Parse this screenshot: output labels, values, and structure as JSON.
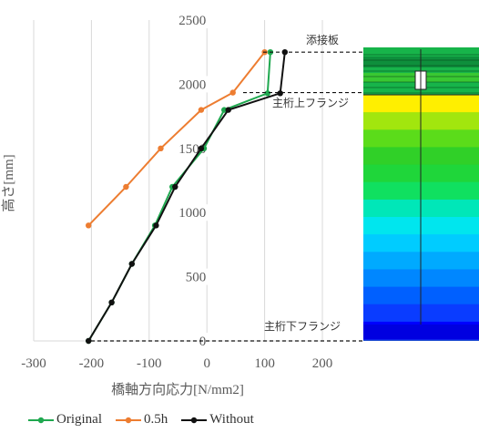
{
  "chart_data": {
    "type": "line",
    "xlabel": "橋軸方向応力[N/mm2]",
    "ylabel": "高さ[mm]",
    "xlim": [
      -300,
      200
    ],
    "ylim": [
      0,
      2500
    ],
    "xticks": [
      "-300",
      "-200",
      "-100",
      "0",
      "100",
      "200"
    ],
    "yticks": [
      "0",
      "500",
      "1000",
      "1500",
      "2000",
      "2500"
    ],
    "grid": "vertical-major",
    "legend_position": "bottom-left",
    "series": [
      {
        "name": "Original",
        "color": "#1fa84f",
        "points": [
          [
            -205,
            0
          ],
          [
            -165,
            300
          ],
          [
            -130,
            600
          ],
          [
            -90,
            900
          ],
          [
            -60,
            1200
          ],
          [
            -5,
            1500
          ],
          [
            30,
            1800
          ],
          [
            105,
            1930
          ],
          [
            110,
            2250
          ]
        ]
      },
      {
        "name": "0.5h",
        "color": "#ed7d31",
        "points": [
          [
            -205,
            900
          ],
          [
            -140,
            1200
          ],
          [
            -80,
            1500
          ],
          [
            -10,
            1800
          ],
          [
            45,
            1935
          ],
          [
            100,
            2250
          ]
        ]
      },
      {
        "name": "Without",
        "color": "#111111",
        "points": [
          [
            -205,
            0
          ],
          [
            -165,
            300
          ],
          [
            -130,
            600
          ],
          [
            -88,
            900
          ],
          [
            -55,
            1200
          ],
          [
            -10,
            1500
          ],
          [
            37,
            1800
          ],
          [
            127,
            1930
          ],
          [
            135,
            2250
          ]
        ]
      }
    ],
    "annotations": [
      {
        "text": "添接板",
        "y": 2250
      },
      {
        "text": "主桁上フランジ",
        "y": 1935
      },
      {
        "text": "主桁下フランジ",
        "y": 0
      }
    ]
  },
  "fem_colors": [
    "#0000ff",
    "#0a3cff",
    "#0060ff",
    "#0087ff",
    "#00aaff",
    "#00ccff",
    "#00e6ee",
    "#00e7b8",
    "#10e060",
    "#1fd63a",
    "#30d028",
    "#5bdc1a",
    "#a2e60e",
    "#ffef00"
  ]
}
